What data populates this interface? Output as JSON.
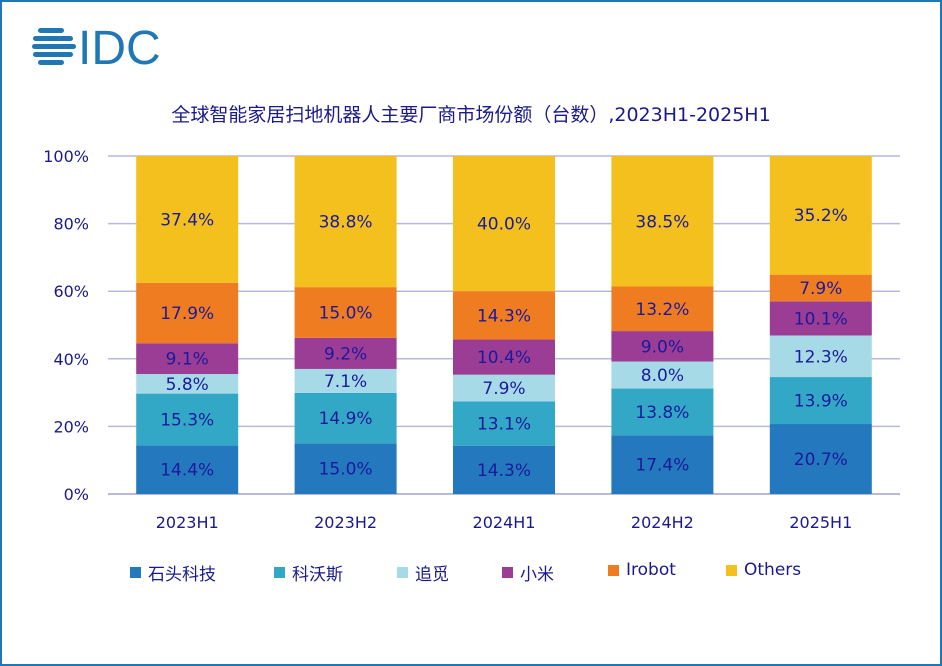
{
  "logo_text": "IDC",
  "chart_data": {
    "type": "bar",
    "stacked": true,
    "title": "全球智能家居扫地机器人主要厂商市场份额（台数）,2023H1-2025H1",
    "categories": [
      "2023H1",
      "2023H2",
      "2024H1",
      "2024H2",
      "2025H1"
    ],
    "ylim": [
      0,
      100
    ],
    "yticks": [
      "0%",
      "20%",
      "40%",
      "60%",
      "80%",
      "100%"
    ],
    "grid": true,
    "legend_position": "bottom",
    "series": [
      {
        "name": "石头科技",
        "color": "#2478bd",
        "values": [
          14.4,
          15.0,
          14.3,
          17.4,
          20.7
        ],
        "labels": [
          "14.4%",
          "15.0%",
          "14.3%",
          "17.4%",
          "20.7%"
        ]
      },
      {
        "name": "科沃斯",
        "color": "#33a8c6",
        "values": [
          15.3,
          14.9,
          13.1,
          13.8,
          13.9
        ],
        "labels": [
          "15.3%",
          "14.9%",
          "13.1%",
          "13.8%",
          "13.9%"
        ]
      },
      {
        "name": "追觅",
        "color": "#a5dae6",
        "values": [
          5.8,
          7.1,
          7.9,
          8.0,
          12.3
        ],
        "labels": [
          "5.8%",
          "7.1%",
          "7.9%",
          "8.0%",
          "12.3%"
        ]
      },
      {
        "name": "小米",
        "color": "#9b3c95",
        "values": [
          9.1,
          9.2,
          10.4,
          9.0,
          10.1
        ],
        "labels": [
          "9.1%",
          "9.2%",
          "10.4%",
          "9.0%",
          "10.1%"
        ]
      },
      {
        "name": "Irobot",
        "color": "#f07c22",
        "values": [
          17.9,
          15.0,
          14.3,
          13.2,
          7.9
        ],
        "labels": [
          "17.9%",
          "15.0%",
          "14.3%",
          "13.2%",
          "7.9%"
        ]
      },
      {
        "name": "Others",
        "color": "#f4c01e",
        "values": [
          37.4,
          38.8,
          40.0,
          38.5,
          35.2
        ],
        "labels": [
          "37.4%",
          "38.8%",
          "40.0%",
          "38.5%",
          "35.2%"
        ]
      }
    ]
  }
}
